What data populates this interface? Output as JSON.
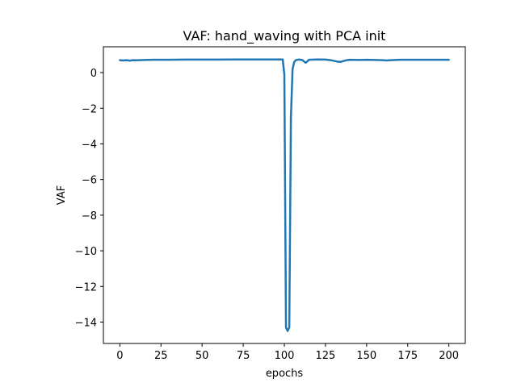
{
  "chart_data": {
    "type": "line",
    "title": "VAF: hand_waving with PCA init",
    "xlabel": "epochs",
    "ylabel": "VAF",
    "xlim": [
      -10,
      210
    ],
    "ylim": [
      -15.2,
      1.45
    ],
    "xticks": [
      0,
      25,
      50,
      75,
      100,
      125,
      150,
      175,
      200
    ],
    "yticks": [
      0,
      -2,
      -4,
      -6,
      -8,
      -10,
      -12,
      -14
    ],
    "grid": false,
    "line_color": "#1f77b4",
    "series": [
      {
        "x": [
          0,
          2,
          4,
          6,
          8,
          10,
          15,
          20,
          30,
          40,
          50,
          60,
          70,
          80,
          90,
          95,
          99,
          100,
          101,
          102,
          103,
          104,
          105,
          106,
          107,
          108,
          109,
          110,
          111,
          112,
          113,
          115,
          120,
          125,
          128,
          130,
          132,
          134,
          136,
          138,
          140,
          145,
          150,
          155,
          160,
          162,
          165,
          170,
          180,
          190,
          200
        ],
        "y": [
          0.7,
          0.68,
          0.7,
          0.67,
          0.7,
          0.69,
          0.71,
          0.72,
          0.72,
          0.73,
          0.73,
          0.73,
          0.74,
          0.74,
          0.74,
          0.74,
          0.74,
          -0.1,
          -14.3,
          -14.5,
          -14.3,
          -2.5,
          0.2,
          0.6,
          0.7,
          0.72,
          0.73,
          0.72,
          0.7,
          0.62,
          0.55,
          0.72,
          0.74,
          0.73,
          0.7,
          0.66,
          0.62,
          0.6,
          0.65,
          0.7,
          0.72,
          0.71,
          0.72,
          0.71,
          0.7,
          0.68,
          0.7,
          0.72,
          0.72,
          0.72,
          0.72
        ]
      }
    ]
  }
}
